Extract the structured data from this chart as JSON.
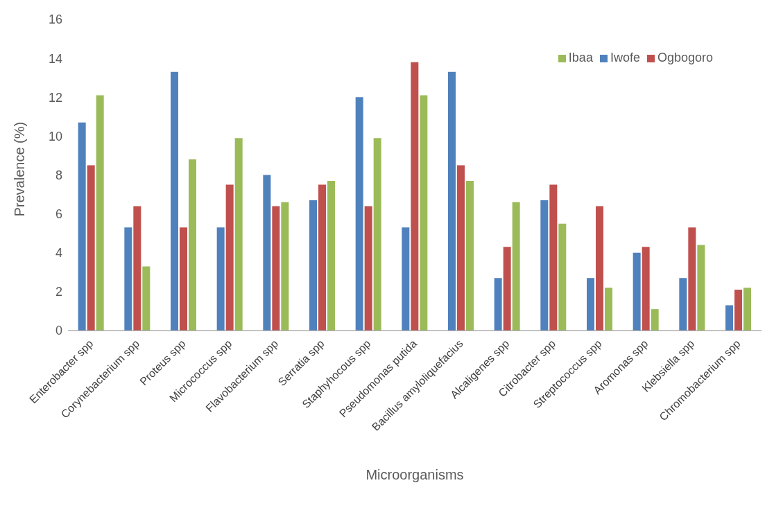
{
  "chart_data": {
    "type": "bar",
    "xlabel": "Microorganisms",
    "ylabel": "Prevalence (%)",
    "categories": [
      "Enterobacter spp",
      "Corynebacterium spp",
      "Proteus spp",
      "Micrococcus spp",
      "Flavobacterium spp",
      "Serratia spp",
      "Staphyhocous spp",
      "Pseudomonas putida",
      "Bacillus amyloliquefacius",
      "Alcaligenes spp",
      "Citrobacter spp",
      "Streptococcus spp",
      "Aromonas spp",
      "Klebsiella spp",
      "Chromobacterium spp"
    ],
    "series": [
      {
        "name": "Iwofe",
        "color": "#4f81bd",
        "values": [
          10.7,
          5.3,
          13.3,
          5.3,
          8.0,
          6.7,
          12.0,
          5.3,
          13.3,
          2.7,
          6.7,
          2.7,
          4.0,
          2.7,
          1.3
        ]
      },
      {
        "name": "Ogbogoro",
        "color": "#c0504d",
        "values": [
          8.5,
          6.4,
          5.3,
          7.5,
          6.4,
          7.5,
          6.4,
          13.8,
          8.5,
          4.3,
          7.5,
          6.4,
          4.3,
          5.3,
          2.1
        ]
      },
      {
        "name": "Ibaa",
        "color": "#9bbb59",
        "values": [
          12.1,
          3.3,
          8.8,
          9.9,
          6.6,
          7.7,
          9.9,
          12.1,
          7.7,
          6.6,
          5.5,
          2.2,
          1.1,
          4.4,
          2.2
        ]
      }
    ],
    "ylim": [
      0,
      16
    ],
    "yticks": [
      0,
      2,
      4,
      6,
      8,
      10,
      12,
      14,
      16
    ],
    "grid": false,
    "legend": "top right"
  }
}
